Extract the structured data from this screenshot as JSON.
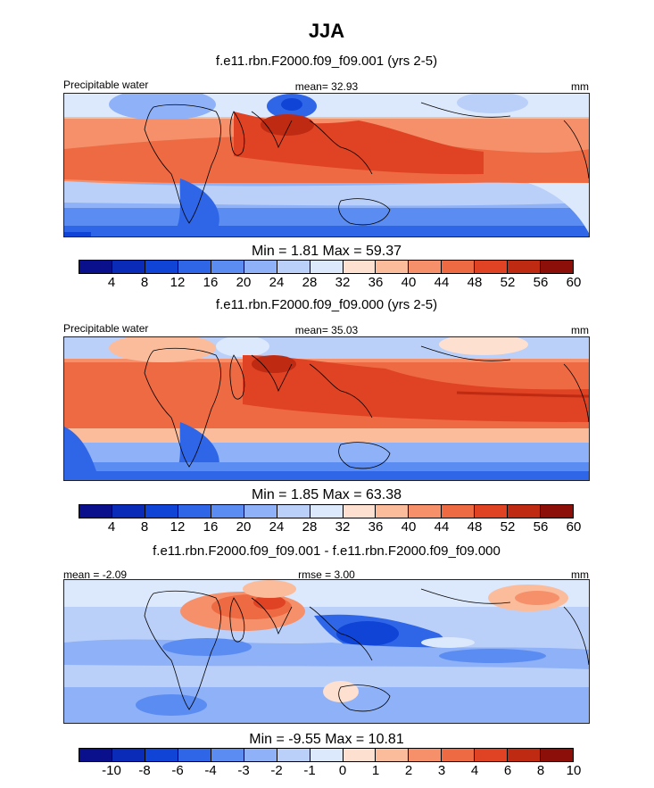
{
  "figure": {
    "title": "JJA"
  },
  "chart_data": [
    {
      "type": "heatmap",
      "title": "f.e11.rbn.F2000.f09_f09.001 (yrs 2-5)",
      "left_label": "Precipitable water",
      "center_label": "mean=  32.93",
      "right_label": "mm",
      "stats_label": "Min =   1.81 Max =  59.37",
      "min": 1.81,
      "max": 59.37,
      "mean": 32.93,
      "colorbar_ticks": [
        "4",
        "8",
        "12",
        "16",
        "20",
        "24",
        "28",
        "32",
        "36",
        "40",
        "44",
        "48",
        "52",
        "56",
        "60"
      ],
      "colors": [
        "#0a108c",
        "#0a2bb8",
        "#0f44d6",
        "#2f66e8",
        "#5b8cf2",
        "#8eb1f7",
        "#bad0f9",
        "#dce8fb",
        "#fde0cf",
        "#fbbc9c",
        "#f5906a",
        "#ee6a42",
        "#df4323",
        "#bf2a12",
        "#8c0f0a"
      ]
    },
    {
      "type": "heatmap",
      "title": "f.e11.rbn.F2000.f09_f09.000 (yrs 2-5)",
      "left_label": "Precipitable water",
      "center_label": "mean=  35.03",
      "right_label": "mm",
      "stats_label": "Min =   1.85 Max =  63.38",
      "min": 1.85,
      "max": 63.38,
      "mean": 35.03,
      "colorbar_ticks": [
        "4",
        "8",
        "12",
        "16",
        "20",
        "24",
        "28",
        "32",
        "36",
        "40",
        "44",
        "48",
        "52",
        "56",
        "60"
      ],
      "colors": [
        "#0a108c",
        "#0a2bb8",
        "#0f44d6",
        "#2f66e8",
        "#5b8cf2",
        "#8eb1f7",
        "#bad0f9",
        "#dce8fb",
        "#fde0cf",
        "#fbbc9c",
        "#f5906a",
        "#ee6a42",
        "#df4323",
        "#bf2a12",
        "#8c0f0a"
      ]
    },
    {
      "type": "heatmap",
      "title": "f.e11.rbn.F2000.f09_f09.001 - f.e11.rbn.F2000.f09_f09.000",
      "left_label": "mean =  -2.09",
      "center_label": "rmse =   3.00",
      "right_label": "mm",
      "stats_label": "Min =  -9.55 Max =  10.81",
      "min": -9.55,
      "max": 10.81,
      "mean": -2.09,
      "rmse": 3.0,
      "colorbar_ticks": [
        "-10",
        "-8",
        "-6",
        "-4",
        "-3",
        "-2",
        "-1",
        "0",
        "1",
        "2",
        "3",
        "4",
        "6",
        "8",
        "10"
      ],
      "colors": [
        "#0a108c",
        "#0a2bb8",
        "#0f44d6",
        "#2f66e8",
        "#5b8cf2",
        "#8eb1f7",
        "#bad0f9",
        "#dce8fb",
        "#fde0cf",
        "#fbbc9c",
        "#f5906a",
        "#ee6a42",
        "#df4323",
        "#bf2a12",
        "#8c0f0a"
      ]
    }
  ]
}
